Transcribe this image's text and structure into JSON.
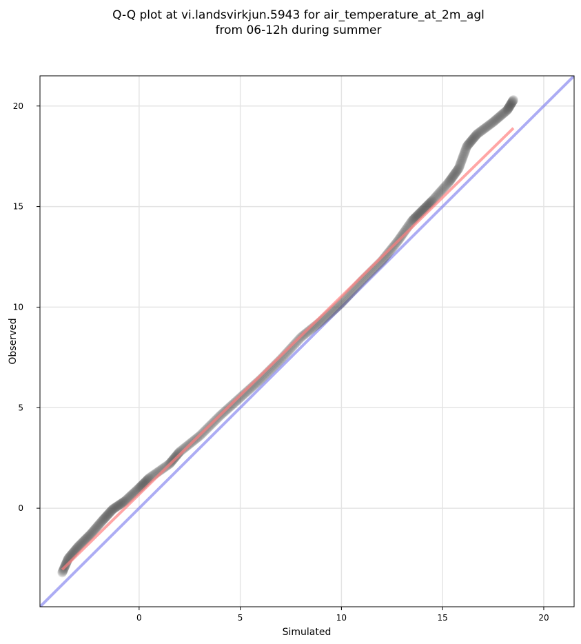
{
  "chart_data": {
    "type": "scatter",
    "title_lines": [
      "Q-Q plot at vi.landsvirkjun.5943 for air_temperature_at_2m_agl",
      "from 06-12h during summer"
    ],
    "xlabel": "Simulated",
    "ylabel": "Observed",
    "xlim": [
      -4.9,
      21.5
    ],
    "ylim": [
      -4.9,
      21.5
    ],
    "xticks": [
      0,
      5,
      10,
      15,
      20
    ],
    "yticks": [
      0,
      5,
      10,
      15,
      20
    ],
    "xtick_labels": [
      "0",
      "5",
      "10",
      "15",
      "20"
    ],
    "ytick_labels": [
      "0",
      "5",
      "10",
      "15",
      "20"
    ],
    "grid": true,
    "colors": {
      "points": "#555555",
      "fit_line": "#ff8080",
      "reference_line": "#8080ee"
    },
    "series": [
      {
        "kind": "quantiles",
        "anchors": [
          [
            -3.8,
            -3.2
          ],
          [
            -3.5,
            -2.5
          ],
          [
            -3.0,
            -1.9
          ],
          [
            -2.4,
            -1.3
          ],
          [
            -1.8,
            -0.6
          ],
          [
            -1.3,
            -0.05
          ],
          [
            -0.7,
            0.35
          ],
          [
            0.0,
            1.0
          ],
          [
            0.5,
            1.5
          ],
          [
            1.5,
            2.2
          ],
          [
            2.0,
            2.8
          ],
          [
            3.0,
            3.6
          ],
          [
            4.0,
            4.6
          ],
          [
            5.0,
            5.5
          ],
          [
            6.0,
            6.4
          ],
          [
            7.0,
            7.4
          ],
          [
            8.0,
            8.5
          ],
          [
            9.0,
            9.3
          ],
          [
            10.0,
            10.2
          ],
          [
            11.0,
            11.3
          ],
          [
            12.0,
            12.3
          ],
          [
            12.8,
            13.3
          ],
          [
            13.5,
            14.3
          ],
          [
            14.0,
            14.8
          ],
          [
            14.5,
            15.3
          ],
          [
            15.3,
            16.2
          ],
          [
            15.8,
            16.9
          ],
          [
            16.2,
            18.0
          ],
          [
            16.7,
            18.6
          ],
          [
            17.5,
            19.2
          ],
          [
            18.2,
            19.8
          ],
          [
            18.5,
            20.3
          ]
        ],
        "count": 620
      },
      {
        "kind": "fit_line",
        "x": [
          -3.8,
          18.5
        ],
        "y": [
          -3.05,
          18.9
        ]
      },
      {
        "kind": "reference_line",
        "x": [
          -4.9,
          21.5
        ],
        "y": [
          -4.9,
          21.5
        ]
      }
    ]
  }
}
